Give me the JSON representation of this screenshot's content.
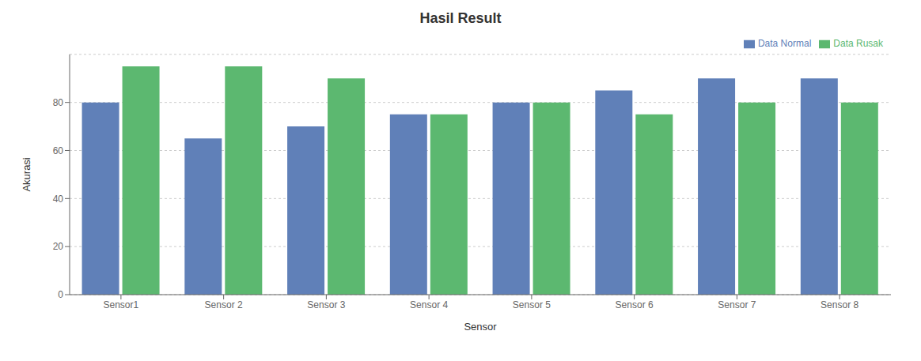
{
  "chart_data": {
    "type": "bar",
    "title": "Hasil Result",
    "xlabel": "Sensor",
    "ylabel": "Akurasi",
    "categories": [
      "Sensor1",
      "Sensor 2",
      "Sensor 3",
      "Sensor 4",
      "Sensor 5",
      "Sensor 6",
      "Sensor 7",
      "Sensor 8"
    ],
    "series": [
      {
        "name": "Data Normal",
        "color": "#6080b8",
        "values": [
          80,
          65,
          70,
          75,
          80,
          85,
          90,
          90
        ]
      },
      {
        "name": "Data Rusak",
        "color": "#5cb870",
        "values": [
          95,
          95,
          90,
          75,
          80,
          75,
          80,
          80
        ]
      }
    ],
    "ylim": [
      0,
      100
    ],
    "yticks": [
      0,
      20,
      40,
      60,
      80
    ],
    "grid": true,
    "legend": "upper right"
  }
}
